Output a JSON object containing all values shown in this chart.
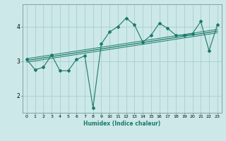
{
  "xlabel": "Humidex (Indice chaleur)",
  "ylabel": "",
  "bg_color": "#cce8e8",
  "grid_color": "#aacece",
  "line_color": "#1a7a6a",
  "xlim": [
    -0.5,
    23.5
  ],
  "ylim": [
    1.5,
    4.65
  ],
  "yticks": [
    2,
    3,
    4
  ],
  "xticks": [
    0,
    1,
    2,
    3,
    4,
    5,
    6,
    7,
    8,
    9,
    10,
    11,
    12,
    13,
    14,
    15,
    16,
    17,
    18,
    19,
    20,
    21,
    22,
    23
  ],
  "main_x": [
    0,
    1,
    2,
    3,
    4,
    5,
    6,
    7,
    8,
    9,
    10,
    11,
    12,
    13,
    14,
    15,
    16,
    17,
    18,
    19,
    20,
    21,
    22,
    23
  ],
  "main_y": [
    3.05,
    2.75,
    2.82,
    3.18,
    2.72,
    2.72,
    3.05,
    3.15,
    1.65,
    3.5,
    3.85,
    4.0,
    4.25,
    4.05,
    3.55,
    3.75,
    4.1,
    3.95,
    3.75,
    3.75,
    3.8,
    4.15,
    3.3,
    4.05
  ],
  "trend1_x": [
    0,
    23
  ],
  "trend1_y": [
    3.02,
    3.87
  ],
  "trend2_x": [
    0,
    23
  ],
  "trend2_y": [
    2.97,
    3.82
  ],
  "trend3_x": [
    0,
    23
  ],
  "trend3_y": [
    3.07,
    3.92
  ]
}
